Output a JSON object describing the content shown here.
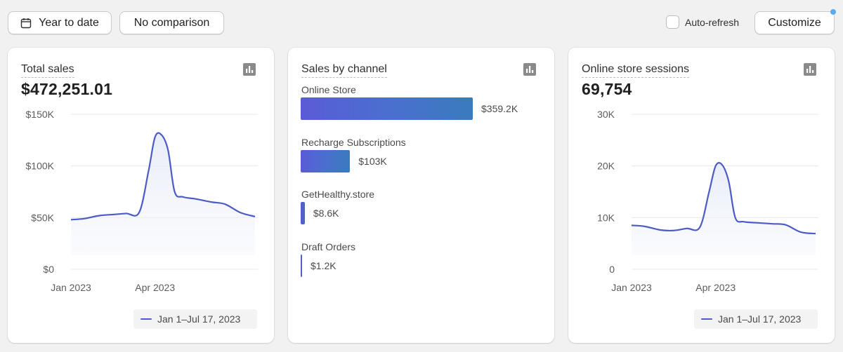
{
  "toolbar": {
    "date_range_label": "Year to date",
    "comparison_label": "No comparison",
    "auto_refresh_label": "Auto-refresh",
    "customize_label": "Customize"
  },
  "cards": {
    "total_sales": {
      "title": "Total sales",
      "value": "$472,251.01",
      "legend": "Jan 1–Jul 17, 2023"
    },
    "sales_by_channel": {
      "title": "Sales by channel"
    },
    "sessions": {
      "title": "Online store sessions",
      "value": "69,754",
      "legend": "Jan 1–Jul 17, 2023"
    }
  },
  "colors": {
    "series_line": "#4c5bc7",
    "accent_dot": "#5aa9f5"
  },
  "chart_data": [
    {
      "type": "area",
      "title": "Total sales",
      "y_tick_labels": [
        "$150K",
        "$100K",
        "$50K",
        "$0"
      ],
      "x_tick_labels": [
        "Jan 2023",
        "Apr 2023"
      ],
      "ylim": [
        0,
        150000
      ],
      "series": [
        {
          "name": "Jan 1–Jul 17, 2023",
          "x": [
            "2023-01-01",
            "2023-01-15",
            "2023-02-01",
            "2023-02-15",
            "2023-03-01",
            "2023-03-15",
            "2023-03-25",
            "2023-04-01",
            "2023-04-08",
            "2023-04-15",
            "2023-04-22",
            "2023-05-01",
            "2023-05-15",
            "2023-06-01",
            "2023-06-15",
            "2023-07-01",
            "2023-07-17"
          ],
          "values": [
            48000,
            49000,
            52000,
            53000,
            54000,
            55000,
            95000,
            128000,
            130000,
            115000,
            75000,
            70000,
            68000,
            65000,
            63000,
            55000,
            51000
          ]
        }
      ],
      "grid": true
    },
    {
      "type": "bar",
      "title": "Sales by channel",
      "categories": [
        "Online Store",
        "Recharge Subscriptions",
        "GetHealthy.store",
        "Draft Orders"
      ],
      "values": [
        359200,
        103000,
        8600,
        1200
      ],
      "value_labels": [
        "$359.2K",
        "$103K",
        "$8.6K",
        "$1.2K"
      ],
      "orientation": "horizontal"
    },
    {
      "type": "area",
      "title": "Online store sessions",
      "y_tick_labels": [
        "30K",
        "20K",
        "10K",
        "0"
      ],
      "x_tick_labels": [
        "Jan 2023",
        "Apr 2023"
      ],
      "ylim": [
        0,
        30000
      ],
      "series": [
        {
          "name": "Jan 1–Jul 17, 2023",
          "x": [
            "2023-01-01",
            "2023-01-15",
            "2023-02-01",
            "2023-02-15",
            "2023-03-01",
            "2023-03-15",
            "2023-03-25",
            "2023-04-01",
            "2023-04-08",
            "2023-04-15",
            "2023-04-22",
            "2023-05-01",
            "2023-05-15",
            "2023-06-01",
            "2023-06-15",
            "2023-07-01",
            "2023-07-17"
          ],
          "values": [
            8500,
            8300,
            7600,
            7500,
            7900,
            8100,
            15000,
            20000,
            20200,
            17000,
            10000,
            9200,
            9000,
            8800,
            8600,
            7200,
            6900
          ]
        }
      ],
      "grid": true
    }
  ]
}
